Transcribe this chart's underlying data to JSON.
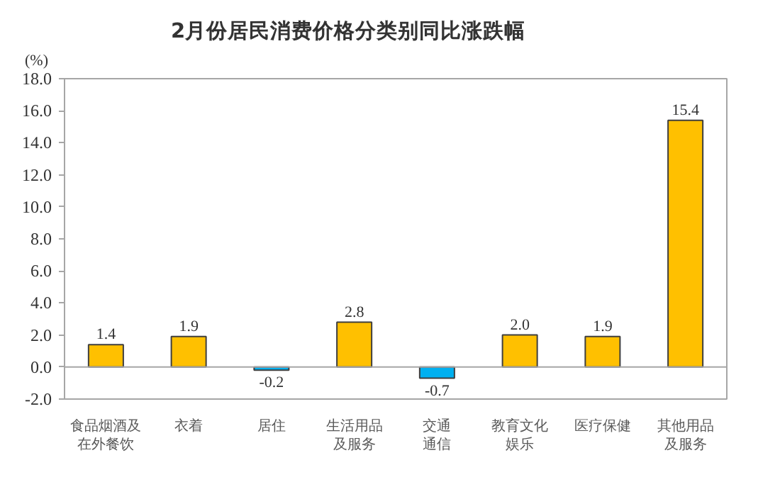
{
  "chart_data": {
    "type": "bar",
    "title": "2月份居民消费价格分类别同比涨跌幅",
    "ylabel": "(%)",
    "categories": [
      "食品烟酒及在外餐饮",
      "衣着",
      "居住",
      "生活用品及服务",
      "交通通信",
      "教育文化娱乐",
      "医疗保健",
      "其他用品及服务"
    ],
    "values": [
      1.4,
      1.9,
      -0.2,
      2.8,
      -0.7,
      2.0,
      1.9,
      15.4
    ],
    "value_labels": [
      "1.4",
      "1.9",
      "-0.2",
      "2.8",
      "-0.7",
      "2.0",
      "1.9",
      "15.4"
    ],
    "colors": [
      "#ffc000",
      "#ffc000",
      "#00b0f0",
      "#ffc000",
      "#00b0f0",
      "#ffc000",
      "#ffc000",
      "#ffc000"
    ],
    "ylim": [
      -2,
      18
    ],
    "yticks": [
      {
        "value": -2,
        "label": "-2.0"
      },
      {
        "value": 0,
        "label": "0.0"
      },
      {
        "value": 2,
        "label": "2.0"
      },
      {
        "value": 4,
        "label": "4.0"
      },
      {
        "value": 6,
        "label": "6.0"
      },
      {
        "value": 8,
        "label": "8.0"
      },
      {
        "value": 10,
        "label": "10.0"
      },
      {
        "value": 12,
        "label": "12.0"
      },
      {
        "value": 14,
        "label": "14.0"
      },
      {
        "value": 16,
        "label": "16.0"
      },
      {
        "value": 18,
        "label": "18.0"
      }
    ]
  }
}
